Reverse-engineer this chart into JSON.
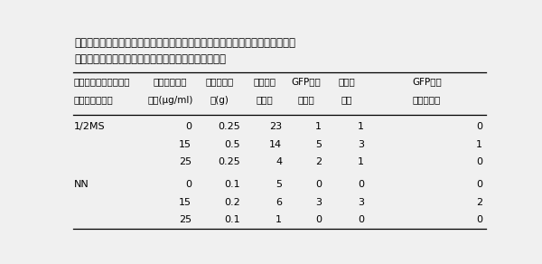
{
  "title_line1": "表１　エンブリオジェニックカルス維持培地及び選抜時のカナマイシン濃度と",
  "title_line2": "　　　ＧＦＰ蛍光を持った形質転換体獲得数との関係",
  "col_headers_line1": [
    "エンブリオジェニック",
    "カナマイシン",
    "感染カルス",
    "もやし状",
    "GFP蛍光",
    "再分化",
    "GFP蛍光"
  ],
  "col_headers_line2": [
    "カルス維持培地",
    "濃度(μg/ml)",
    "重(g)",
    "不定胚",
    "不定胚",
    "個体",
    "形質転換体"
  ],
  "rows": [
    [
      "1/2MS",
      "0",
      "0.25",
      "23",
      "1",
      "1",
      "0"
    ],
    [
      "",
      "15",
      "0.5",
      "14",
      "5",
      "3",
      "1"
    ],
    [
      "",
      "25",
      "0.25",
      "4",
      "2",
      "1",
      "0"
    ],
    [
      "NN",
      "0",
      "0.1",
      "5",
      "0",
      "0",
      "0"
    ],
    [
      "",
      "15",
      "0.2",
      "6",
      "3",
      "3",
      "2"
    ],
    [
      "",
      "25",
      "0.1",
      "1",
      "0",
      "0",
      "0"
    ]
  ],
  "background_color": "#f0f0f0",
  "font_size_title": 8.5,
  "font_size_header": 7.5,
  "font_size_data": 8.0
}
